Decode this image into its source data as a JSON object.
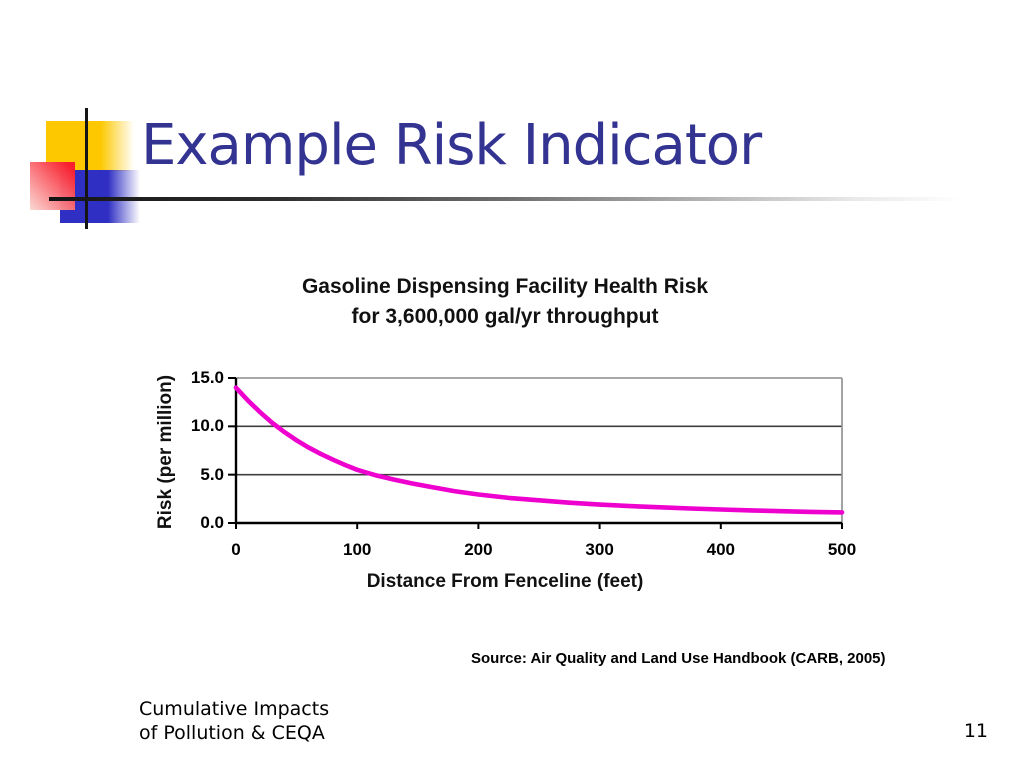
{
  "slide": {
    "title": "Example Risk Indicator",
    "title_color": "#333391",
    "source_note": "Source: Air Quality and Land Use Handbook (CARB, 2005)",
    "footer_line1": "Cumulative Impacts",
    "footer_line2": "of Pollution & CEQA",
    "page_number": "11",
    "decoration_colors": {
      "yellow": "#FDC800",
      "blue": "#2F2FC4",
      "red": "#F91F2F",
      "line": "#151515"
    }
  },
  "chart_data": {
    "type": "line",
    "title": "Gasoline Dispensing Facility Health Risk for 3,600,000 gal/yr throughput",
    "title_line1": "Gasoline Dispensing Facility Health Risk",
    "title_line2": "for 3,600,000 gal/yr throughput",
    "xlabel": "Distance From Fenceline (feet)",
    "ylabel": "Risk (per million)",
    "xlim": [
      0,
      500
    ],
    "ylim": [
      0,
      15
    ],
    "x_ticks": [
      0,
      100,
      200,
      300,
      400,
      500
    ],
    "y_ticks": [
      0,
      5,
      10,
      15
    ],
    "y_tick_labels": [
      "0.0",
      "5.0",
      "10.0",
      "15.0"
    ],
    "grid": true,
    "legend": false,
    "colors": {
      "line": "#EE00CE",
      "gridline": "#3F3F3F",
      "border": "#8C8C8C",
      "axis": "#000000"
    },
    "series": [
      {
        "name": "Health Risk",
        "x": [
          0,
          10,
          20,
          30,
          40,
          50,
          60,
          70,
          80,
          90,
          100,
          115,
          130,
          145,
          160,
          180,
          200,
          225,
          250,
          275,
          300,
          325,
          350,
          375,
          400,
          425,
          450,
          475,
          500
        ],
        "y": [
          14.0,
          12.65,
          11.45,
          10.35,
          9.4,
          8.55,
          7.8,
          7.15,
          6.55,
          6.0,
          5.5,
          4.95,
          4.5,
          4.1,
          3.75,
          3.3,
          2.95,
          2.6,
          2.35,
          2.1,
          1.9,
          1.75,
          1.62,
          1.5,
          1.4,
          1.3,
          1.22,
          1.15,
          1.1
        ]
      }
    ]
  }
}
